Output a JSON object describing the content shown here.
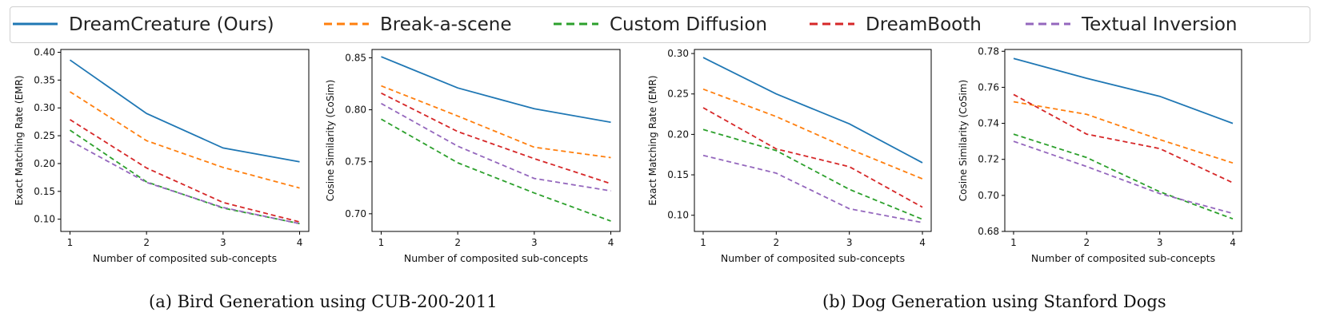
{
  "legend": [
    {
      "name": "DreamCreature (Ours)",
      "color": "#1f77b4",
      "dash": false
    },
    {
      "name": "Break-a-scene",
      "color": "#ff7f0e",
      "dash": true
    },
    {
      "name": "Custom Diffusion",
      "color": "#2ca02c",
      "dash": true
    },
    {
      "name": "DreamBooth",
      "color": "#d62728",
      "dash": true
    },
    {
      "name": "Textual Inversion",
      "color": "#9467bd",
      "dash": true
    }
  ],
  "captions": {
    "a": "(a) Bird Generation using CUB-200-2011",
    "b": "(b) Dog Generation using Stanford Dogs"
  },
  "chart_data": [
    {
      "type": "line",
      "xlabel": "Number of composited sub-concepts",
      "ylabel": "Exact Matching Rate (EMR)",
      "x": [
        1,
        2,
        3,
        4
      ],
      "xlim": [
        0.88,
        4.12
      ],
      "ylim": [
        0.078,
        0.405
      ],
      "yticks": [
        0.1,
        0.15,
        0.2,
        0.25,
        0.3,
        0.35,
        0.4
      ],
      "ytick_labels": [
        "0.10",
        "0.15",
        "0.20",
        "0.25",
        "0.30",
        "0.35",
        "0.40"
      ],
      "series": [
        {
          "name": "DreamCreature (Ours)",
          "values": [
            0.386,
            0.29,
            0.228,
            0.203
          ]
        },
        {
          "name": "Break-a-scene",
          "values": [
            0.329,
            0.241,
            0.193,
            0.156
          ]
        },
        {
          "name": "Custom Diffusion",
          "values": [
            0.26,
            0.167,
            0.12,
            0.092
          ]
        },
        {
          "name": "DreamBooth",
          "values": [
            0.279,
            0.192,
            0.13,
            0.095
          ]
        },
        {
          "name": "Textual Inversion",
          "values": [
            0.241,
            0.166,
            0.121,
            0.092
          ]
        }
      ]
    },
    {
      "type": "line",
      "xlabel": "Number of composited sub-concepts",
      "ylabel": "Cosine Similarity (CoSim)",
      "x": [
        1,
        2,
        3,
        4
      ],
      "xlim": [
        0.88,
        4.12
      ],
      "ylim": [
        0.683,
        0.858
      ],
      "yticks": [
        0.7,
        0.75,
        0.8,
        0.85
      ],
      "ytick_labels": [
        "0.70",
        "0.75",
        "0.80",
        "0.85"
      ],
      "series": [
        {
          "name": "DreamCreature (Ours)",
          "values": [
            0.851,
            0.821,
            0.801,
            0.788
          ]
        },
        {
          "name": "Break-a-scene",
          "values": [
            0.823,
            0.794,
            0.764,
            0.754
          ]
        },
        {
          "name": "Custom Diffusion",
          "values": [
            0.791,
            0.749,
            0.72,
            0.693
          ]
        },
        {
          "name": "DreamBooth",
          "values": [
            0.816,
            0.779,
            0.753,
            0.729
          ]
        },
        {
          "name": "Textual Inversion",
          "values": [
            0.806,
            0.765,
            0.734,
            0.722
          ]
        }
      ]
    },
    {
      "type": "line",
      "xlabel": "Number of composited sub-concepts",
      "ylabel": "Exact Matching Rate (EMR)",
      "x": [
        1,
        2,
        3,
        4
      ],
      "xlim": [
        0.88,
        4.12
      ],
      "ylim": [
        0.08,
        0.305
      ],
      "yticks": [
        0.1,
        0.15,
        0.2,
        0.25,
        0.3
      ],
      "ytick_labels": [
        "0.10",
        "0.15",
        "0.20",
        "0.25",
        "0.30"
      ],
      "series": [
        {
          "name": "DreamCreature (Ours)",
          "values": [
            0.295,
            0.25,
            0.213,
            0.165
          ]
        },
        {
          "name": "Break-a-scene",
          "values": [
            0.256,
            0.222,
            0.182,
            0.145
          ]
        },
        {
          "name": "Custom Diffusion",
          "values": [
            0.206,
            0.18,
            0.132,
            0.095
          ]
        },
        {
          "name": "DreamBooth",
          "values": [
            0.233,
            0.182,
            0.16,
            0.11
          ]
        },
        {
          "name": "Textual Inversion",
          "values": [
            0.174,
            0.152,
            0.108,
            0.091
          ]
        }
      ]
    },
    {
      "type": "line",
      "xlabel": "Number of composited sub-concepts",
      "ylabel": "Cosine Similarity (CoSim)",
      "x": [
        1,
        2,
        3,
        4
      ],
      "xlim": [
        0.88,
        4.12
      ],
      "ylim": [
        0.68,
        0.781
      ],
      "yticks": [
        0.68,
        0.7,
        0.72,
        0.74,
        0.76,
        0.78
      ],
      "ytick_labels": [
        "0.68",
        "0.70",
        "0.72",
        "0.74",
        "0.76",
        "0.78"
      ],
      "series": [
        {
          "name": "DreamCreature (Ours)",
          "values": [
            0.776,
            0.765,
            0.755,
            0.74
          ]
        },
        {
          "name": "Break-a-scene",
          "values": [
            0.752,
            0.745,
            0.731,
            0.718
          ]
        },
        {
          "name": "Custom Diffusion",
          "values": [
            0.734,
            0.721,
            0.702,
            0.687
          ]
        },
        {
          "name": "DreamBooth",
          "values": [
            0.756,
            0.734,
            0.726,
            0.707
          ]
        },
        {
          "name": "Textual Inversion",
          "values": [
            0.73,
            0.716,
            0.701,
            0.69
          ]
        }
      ]
    }
  ]
}
